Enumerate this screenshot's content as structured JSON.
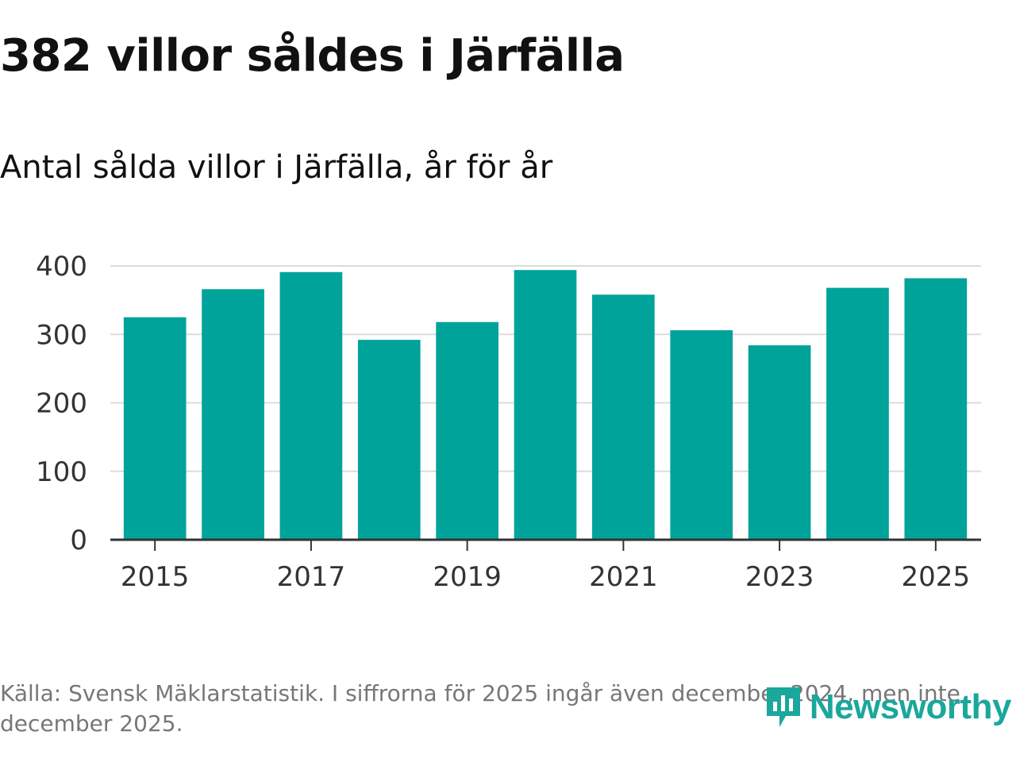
{
  "header": {
    "title": "382 villor såldes i Järfälla",
    "subtitle": "Antal sålda villor i Järfälla, år för år"
  },
  "chart_data": {
    "type": "bar",
    "title": "382 villor såldes i Järfälla",
    "subtitle": "Antal sålda villor i Järfälla, år för år",
    "categories": [
      "2015",
      "2016",
      "2017",
      "2018",
      "2019",
      "2020",
      "2021",
      "2022",
      "2023",
      "2024",
      "2025"
    ],
    "values": [
      325,
      366,
      391,
      292,
      318,
      394,
      358,
      306,
      284,
      368,
      382
    ],
    "x_tick_labels": [
      "2015",
      "2017",
      "2019",
      "2021",
      "2023",
      "2025"
    ],
    "y_ticks": [
      0,
      100,
      200,
      300,
      400
    ],
    "ylim": [
      0,
      400
    ],
    "xlabel": "",
    "ylabel": "",
    "grid": true,
    "bar_color": "#00a39a"
  },
  "footer": {
    "source": "Källa: Svensk Mäklarstatistik. I siffrorna för 2025 ingår även december 2024, men inte december 2025.",
    "logo_text": "Newsworthy",
    "logo_icon": "newsworthy-logo-icon",
    "logo_color": "#1aa79c"
  }
}
